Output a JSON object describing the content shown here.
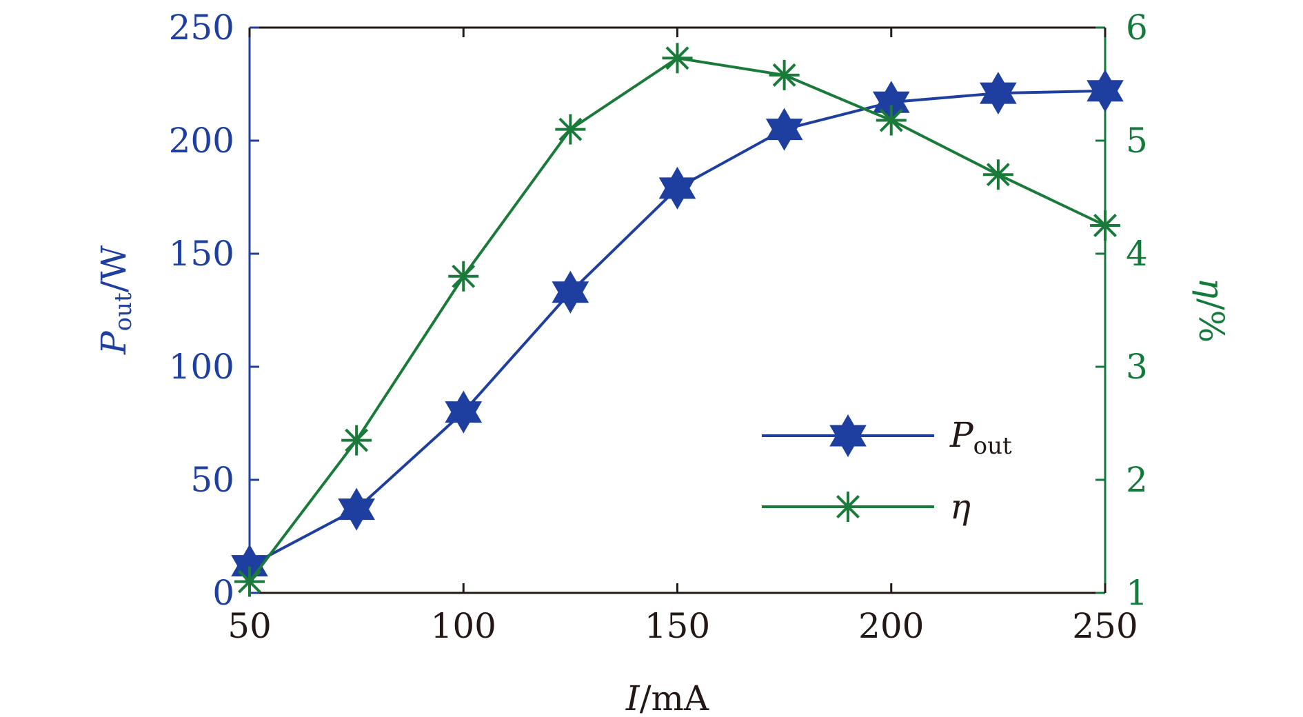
{
  "chart_data": {
    "type": "line",
    "x_label": {
      "var": "I",
      "unit": "/mA"
    },
    "left_ylabel": {
      "var": "P",
      "sub": "out",
      "unit": "/W"
    },
    "right_ylabel": {
      "var": "η",
      "unit": "/%"
    },
    "x": [
      50,
      75,
      100,
      125,
      150,
      175,
      200,
      225,
      250
    ],
    "xlim": [
      50,
      250
    ],
    "x_ticks": [
      50,
      100,
      150,
      200,
      250
    ],
    "x_tick_labels": [
      "50",
      "100",
      "150",
      "200",
      "250"
    ],
    "left_ylim": [
      0,
      250
    ],
    "left_ticks": [
      0,
      50,
      100,
      150,
      200,
      250
    ],
    "left_tick_labels": [
      "0",
      "50",
      "100",
      "150",
      "200",
      "250"
    ],
    "right_ylim": [
      1,
      6
    ],
    "right_ticks": [
      1,
      2,
      3,
      4,
      5,
      6
    ],
    "right_tick_labels": [
      "1",
      "2",
      "3",
      "4",
      "5",
      "6"
    ],
    "series": [
      {
        "name": "P_out",
        "legend_var": "P",
        "legend_sub": "out",
        "axis": "left",
        "marker": "hexagram",
        "values": [
          12,
          37,
          80,
          133,
          179,
          205,
          217,
          221,
          222
        ]
      },
      {
        "name": "η",
        "legend_var": "η",
        "legend_sub": "",
        "axis": "right",
        "marker": "asterisk",
        "values": [
          1.1,
          2.35,
          3.8,
          5.1,
          5.73,
          5.58,
          5.18,
          4.7,
          4.25
        ]
      }
    ],
    "legend_position": "lower-right",
    "colors": {
      "left_axis": "#1e3fa0",
      "right_axis": "#147a3c",
      "p_out_series": "#1e3fa0",
      "eta_series": "#1a7a3a",
      "frame": "#231815"
    }
  }
}
